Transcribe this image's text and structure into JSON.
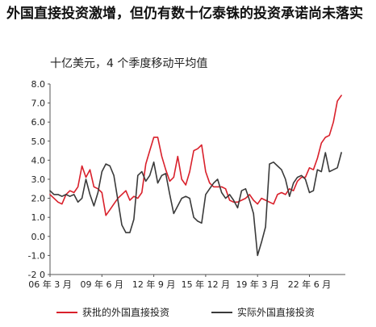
{
  "title": "外国直接投资激增，但仍有数十亿泰铢的投资承诺尚未落实",
  "unit_label": "十亿美元，4 个季度移动平均值",
  "chart_data": {
    "type": "line",
    "ylim": [
      -2.0,
      8.0
    ],
    "y_ticks": [
      "8.0",
      "7.0",
      "6.0",
      "5.0",
      "4.0",
      "3.0",
      "2.0",
      "1.0",
      "0.0",
      "-1.0",
      "-2 0"
    ],
    "y_tick_values": [
      8,
      7,
      6,
      5,
      4,
      3,
      2,
      1,
      0,
      -1,
      -2
    ],
    "x_ticks": [
      "06 年 3 月",
      "09 年 6 月",
      "12 年 9 月",
      "15 年 12 月",
      "19 年 3 月",
      "22 年 6 月"
    ],
    "x_tick_values": [
      2006.0,
      2009.25,
      2012.5,
      2015.75,
      2019.0,
      2022.25
    ],
    "xlim": [
      2006.0,
      2024.5
    ],
    "grid": false,
    "legend_position": "bottom",
    "series": [
      {
        "name": "获批的外国直接投资",
        "color": "#d9202b",
        "x": [
          2006.0,
          2006.25,
          2006.5,
          2006.75,
          2007.0,
          2007.25,
          2007.5,
          2007.75,
          2008.0,
          2008.25,
          2008.5,
          2008.75,
          2009.0,
          2009.25,
          2009.5,
          2009.75,
          2010.0,
          2010.25,
          2010.5,
          2010.75,
          2011.0,
          2011.25,
          2011.5,
          2011.75,
          2012.0,
          2012.25,
          2012.5,
          2012.75,
          2013.0,
          2013.25,
          2013.5,
          2013.75,
          2014.0,
          2014.25,
          2014.5,
          2014.75,
          2015.0,
          2015.25,
          2015.5,
          2015.75,
          2016.0,
          2016.25,
          2016.5,
          2016.75,
          2017.0,
          2017.25,
          2017.5,
          2017.75,
          2018.0,
          2018.25,
          2018.5,
          2018.75,
          2019.0,
          2019.25,
          2019.5,
          2019.75,
          2020.0,
          2020.25,
          2020.5,
          2020.75,
          2021.0,
          2021.25,
          2021.5,
          2021.75,
          2022.0,
          2022.25,
          2022.5,
          2022.75,
          2023.0,
          2023.25,
          2023.5,
          2023.75,
          2024.0,
          2024.25
        ],
        "values": [
          2.2,
          2.0,
          1.8,
          1.7,
          2.2,
          2.4,
          2.3,
          2.6,
          3.7,
          3.1,
          3.5,
          2.6,
          2.5,
          2.3,
          1.1,
          1.4,
          1.7,
          2.0,
          2.2,
          2.4,
          1.9,
          2.1,
          2.0,
          2.3,
          3.8,
          4.5,
          5.2,
          5.2,
          4.2,
          3.5,
          2.9,
          3.1,
          4.2,
          3.0,
          2.7,
          3.4,
          4.5,
          4.6,
          4.8,
          3.4,
          2.8,
          2.6,
          2.6,
          2.6,
          2.5,
          1.9,
          1.8,
          1.8,
          1.9,
          2.0,
          2.2,
          1.9,
          1.7,
          2.0,
          1.9,
          1.8,
          1.7,
          2.2,
          2.3,
          2.2,
          2.5,
          2.4,
          2.9,
          3.1,
          3.1,
          3.6,
          3.5,
          4.1,
          4.9,
          5.2,
          5.3,
          6.0,
          7.1,
          7.4
        ]
      },
      {
        "name": "实际外国直接投资",
        "color": "#3a3a3a",
        "x": [
          2006.0,
          2006.25,
          2006.5,
          2006.75,
          2007.0,
          2007.25,
          2007.5,
          2007.75,
          2008.0,
          2008.25,
          2008.5,
          2008.75,
          2009.0,
          2009.25,
          2009.5,
          2009.75,
          2010.0,
          2010.25,
          2010.5,
          2010.75,
          2011.0,
          2011.25,
          2011.5,
          2011.75,
          2012.0,
          2012.25,
          2012.5,
          2012.75,
          2013.0,
          2013.25,
          2013.5,
          2013.75,
          2014.0,
          2014.25,
          2014.5,
          2014.75,
          2015.0,
          2015.25,
          2015.5,
          2015.75,
          2016.0,
          2016.25,
          2016.5,
          2016.75,
          2017.0,
          2017.25,
          2017.5,
          2017.75,
          2018.0,
          2018.25,
          2018.5,
          2018.75,
          2019.0,
          2019.25,
          2019.5,
          2019.75,
          2020.0,
          2020.25,
          2020.5,
          2020.75,
          2021.0,
          2021.25,
          2021.5,
          2021.75,
          2022.0,
          2022.25,
          2022.5,
          2022.75,
          2023.0,
          2023.25,
          2023.5,
          2023.75,
          2024.0,
          2024.25
        ],
        "values": [
          2.4,
          2.2,
          2.2,
          2.1,
          2.2,
          2.1,
          2.2,
          1.8,
          2.0,
          3.0,
          2.2,
          1.6,
          2.3,
          3.4,
          3.8,
          3.7,
          3.2,
          1.9,
          0.6,
          0.2,
          0.2,
          0.9,
          3.2,
          3.4,
          2.9,
          3.2,
          3.9,
          2.8,
          3.2,
          3.3,
          2.2,
          1.2,
          1.6,
          2.0,
          2.1,
          2.0,
          1.0,
          0.8,
          0.7,
          2.2,
          2.5,
          2.8,
          3.0,
          2.3,
          2.0,
          2.2,
          1.9,
          1.5,
          2.4,
          2.5,
          1.9,
          1.2,
          -1.0,
          -0.3,
          0.5,
          3.8,
          3.9,
          3.7,
          3.5,
          3.0,
          2.1,
          2.8,
          3.1,
          3.2,
          3.0,
          2.3,
          2.4,
          3.5,
          3.4,
          4.4,
          3.4,
          3.5,
          3.6,
          4.4
        ]
      }
    ]
  }
}
